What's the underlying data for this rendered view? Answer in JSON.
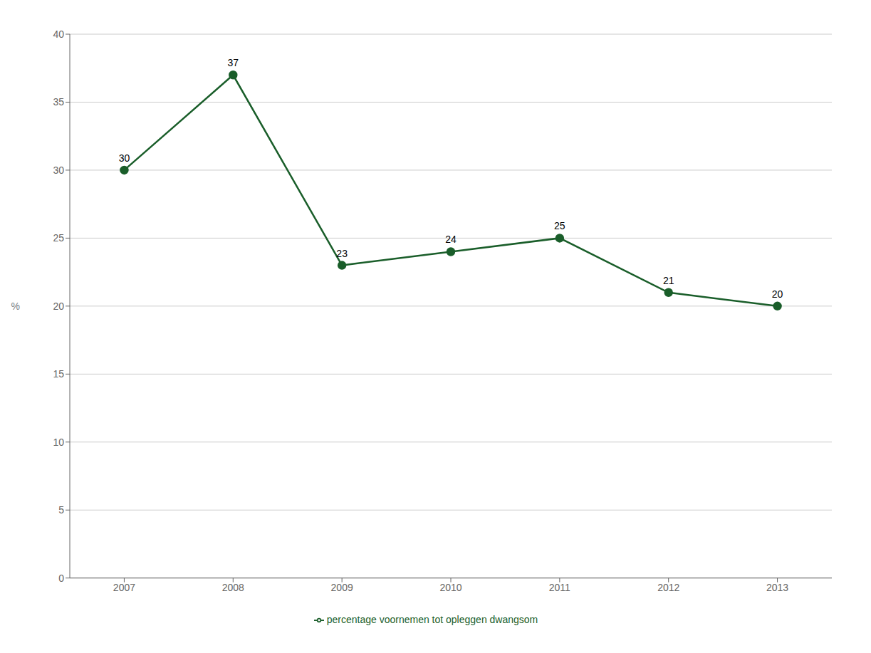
{
  "chart_data": {
    "type": "line",
    "x": [
      2007,
      2008,
      2009,
      2010,
      2011,
      2012,
      2013
    ],
    "series": [
      {
        "name": "percentage voornemen tot opleggen dwangsom",
        "color": "#1a5e2a",
        "values": [
          30,
          37,
          23,
          24,
          25,
          21,
          20
        ],
        "marker": "circle"
      }
    ],
    "ylabel": "%",
    "xlim": [
      2006.5,
      2013.5
    ],
    "xticks": [
      2007,
      2008,
      2009,
      2010,
      2011,
      2012,
      2013
    ],
    "ylim": [
      0,
      40
    ],
    "yticks": [
      0,
      5,
      10,
      15,
      20,
      25,
      30,
      35,
      40
    ],
    "grid": "y",
    "data_labels": true,
    "legend": "bottom"
  }
}
